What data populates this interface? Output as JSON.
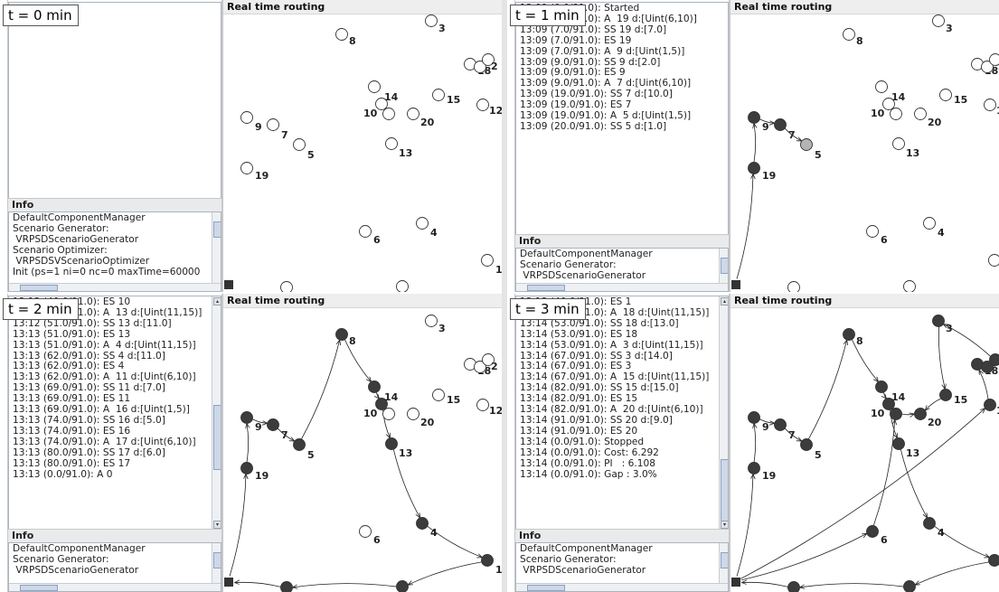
{
  "panels": [
    {
      "badge": "t = 0 min",
      "rt_title": "Real time routing",
      "log_lines": [],
      "info_title": "Info",
      "info_lines": [
        "DefaultComponentManager",
        "Scenario Generator:",
        " VRPSDScenarioGenerator",
        "Scenario Optimizer:",
        " VRPSDSVScenarioOptimizer",
        "Init (ps=1 ni=0 nc=0 maxTime=60000"
      ]
    },
    {
      "badge": "t = 1 min",
      "rt_title": "Real time routing",
      "log_lines": [
        "13:09 (0.0/91.0): Started",
        "13:09 (0.0/91.0): A  19 d:[Uint(6,10)]",
        "13:09 (7.0/91.0): SS 19 d:[7.0]",
        "13:09 (7.0/91.0): ES 19",
        "13:09 (7.0/91.0): A  9 d:[Uint(1,5)]",
        "13:09 (9.0/91.0): SS 9 d:[2.0]",
        "13:09 (9.0/91.0): ES 9",
        "13:09 (9.0/91.0): A  7 d:[Uint(6,10)]",
        "13:09 (19.0/91.0): SS 7 d:[10.0]",
        "13:09 (19.0/91.0): ES 7",
        "13:09 (19.0/91.0): A  5 d:[Uint(1,5)]",
        "13:09 (20.0/91.0): SS 5 d:[1.0]"
      ],
      "info_title": "Info",
      "info_lines": [
        "DefaultComponentManager",
        "Scenario Generator:",
        " VRPSDScenarioGenerator"
      ]
    },
    {
      "badge": "t = 2 min",
      "rt_title": "Real time routing",
      "log_lines": [
        "13:12 (40.0/91.0): ES 10",
        "13:12 (40.0/91.0): A  13 d:[Uint(11,15)]",
        "13:12 (51.0/91.0): SS 13 d:[11.0]",
        "13:13 (51.0/91.0): ES 13",
        "13:13 (51.0/91.0): A  4 d:[Uint(11,15)]",
        "13:13 (62.0/91.0): SS 4 d:[11.0]",
        "13:13 (62.0/91.0): ES 4",
        "13:13 (62.0/91.0): A  11 d:[Uint(6,10)]",
        "13:13 (69.0/91.0): SS 11 d:[7.0]",
        "13:13 (69.0/91.0): ES 11",
        "13:13 (69.0/91.0): A  16 d:[Uint(1,5)]",
        "13:13 (74.0/91.0): SS 16 d:[5.0]",
        "13:13 (74.0/91.0): ES 16",
        "13:13 (74.0/91.0): A  17 d:[Uint(6,10)]",
        "13:13 (80.0/91.0): SS 17 d:[6.0]",
        "13:13 (80.0/91.0): ES 17",
        "13:13 (0.0/91.0): A 0"
      ],
      "info_title": "Info",
      "info_lines": [
        "DefaultComponentManager",
        "Scenario Generator:",
        " VRPSDScenarioGenerator"
      ]
    },
    {
      "badge": "t = 3 min",
      "rt_title": "Real time routing",
      "log_lines": [
        "13:13 (40.0/91.0): ES 1",
        "13:13 (40.0/91.0): A  18 d:[Uint(11,15)]",
        "13:14 (53.0/91.0): SS 18 d:[13.0]",
        "13:14 (53.0/91.0): ES 18",
        "13:14 (53.0/91.0): A  3 d:[Uint(11,15)]",
        "13:14 (67.0/91.0): SS 3 d:[14.0]",
        "13:14 (67.0/91.0): ES 3",
        "13:14 (67.0/91.0): A  15 d:[Uint(11,15)]",
        "13:14 (82.0/91.0): SS 15 d:[15.0]",
        "13:14 (82.0/91.0): ES 15",
        "13:14 (82.0/91.0): A  20 d:[Uint(6,10)]",
        "13:14 (91.0/91.0): SS 20 d:[9.0]",
        "13:14 (91.0/91.0): ES 20",
        "13:14 (0.0/91.0): Stopped",
        "13:14 (0.0/91.0): Cost: 6.292",
        "13:14 (0.0/91.0): PI   : 6.108",
        "13:14 (0.0/91.0): Gap : 3.0%"
      ],
      "info_title": "Info",
      "info_lines": [
        "DefaultComponentManager",
        "Scenario Generator:",
        " VRPSDScenarioGenerator"
      ]
    }
  ],
  "node_labels": [
    "1",
    "2",
    "3",
    "4",
    "5",
    "6",
    "7",
    "8",
    "9",
    "10",
    "12",
    "13",
    "14",
    "15",
    "18",
    "19",
    "20"
  ],
  "colors": {
    "visited": "#3c3c3c",
    "current": "#b4b4b4",
    "unvisited": "#ffffff",
    "depot": "#333333"
  }
}
